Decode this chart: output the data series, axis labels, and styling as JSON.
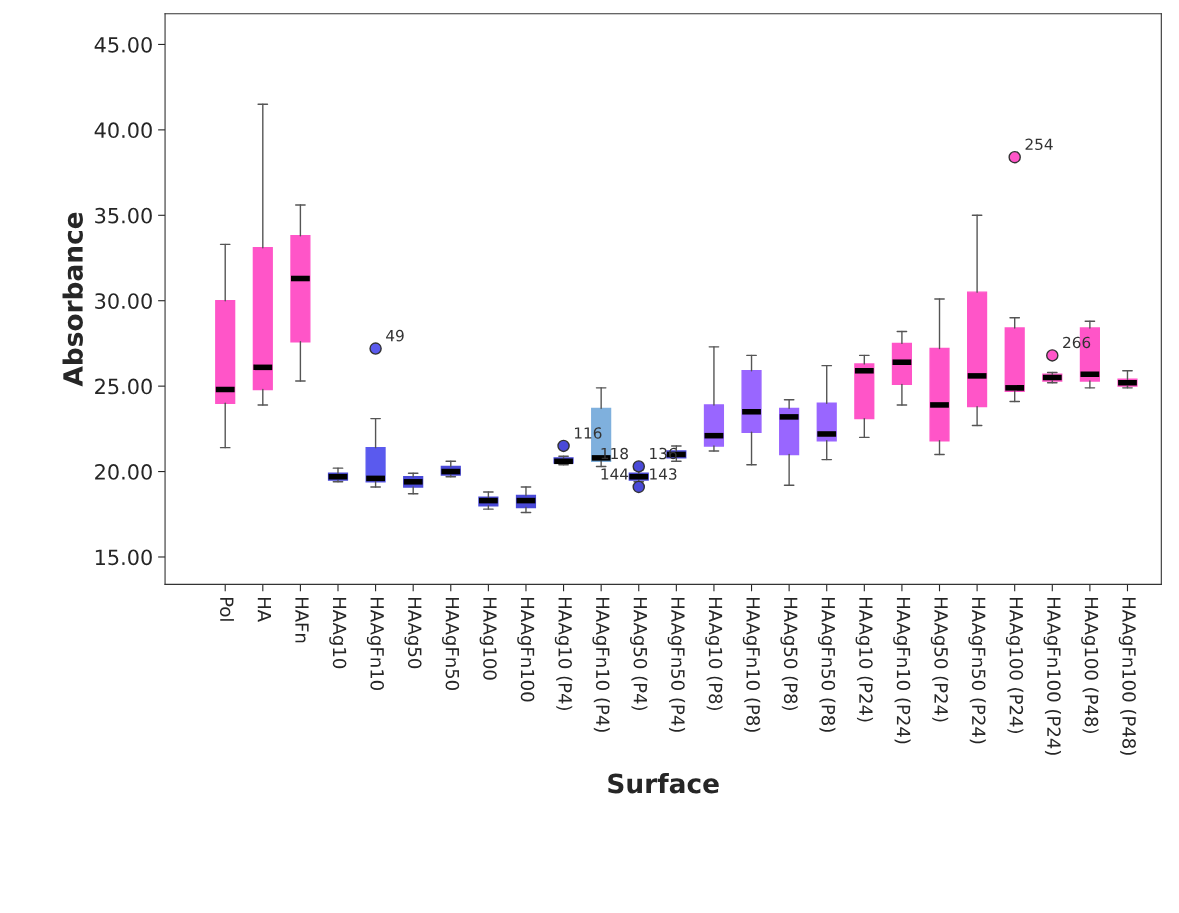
{
  "chart_data": {
    "type": "box",
    "xlabel": "Surface",
    "ylabel": "Absorbance",
    "categories": [
      "Pol",
      "HA",
      "HAFn",
      "HAAg10",
      "HAAgFn10",
      "HAAg50",
      "HAAgFn50",
      "HAAg100",
      "HAAgFn100",
      "HAAg10 (P4)",
      "HAAgFn10 (P4)",
      "HAAg50 (P4)",
      "HAAgFn50 (P4)",
      "HAAg10 (P8)",
      "HAAgFn10 (P8)",
      "HAAg50 (P8)",
      "HAAgFn50 (P8)",
      "HAAg10 (P24)",
      "HAAgFn10 (P24)",
      "HAAg50 (P24)",
      "HAAgFn50 (P24)",
      "HAAg100 (P24)",
      "HAAgFn100 (P24)",
      "HAAg100 (P48)",
      "HAAgFn100 (P48)"
    ],
    "boxes": [
      {
        "low": 21.4,
        "q1": 24.0,
        "median": 24.8,
        "q3": 30.0,
        "high": 33.3
      },
      {
        "low": 23.9,
        "q1": 24.8,
        "median": 26.1,
        "q3": 33.1,
        "high": 41.5
      },
      {
        "low": 25.3,
        "q1": 27.6,
        "median": 31.3,
        "q3": 33.8,
        "high": 35.6
      },
      {
        "low": 19.4,
        "q1": 19.5,
        "median": 19.7,
        "q3": 19.9,
        "high": 20.2
      },
      {
        "low": 19.1,
        "q1": 19.4,
        "median": 19.6,
        "q3": 21.4,
        "high": 23.1,
        "outliers": [
          27.2
        ]
      },
      {
        "low": 18.7,
        "q1": 19.1,
        "median": 19.4,
        "q3": 19.7,
        "high": 19.9
      },
      {
        "low": 19.7,
        "q1": 19.8,
        "median": 20.0,
        "q3": 20.3,
        "high": 20.6
      },
      {
        "low": 17.8,
        "q1": 18.0,
        "median": 18.3,
        "q3": 18.5,
        "high": 18.8
      },
      {
        "low": 17.6,
        "q1": 17.9,
        "median": 18.3,
        "q3": 18.6,
        "high": 19.1
      },
      {
        "low": 20.4,
        "q1": 20.5,
        "median": 20.6,
        "q3": 20.8,
        "high": 20.9,
        "outliers": [
          21.5
        ]
      },
      {
        "low": 20.3,
        "q1": 20.6,
        "median": 20.8,
        "q3": 23.7,
        "high": 24.9
      },
      {
        "low": 19.4,
        "q1": 19.5,
        "median": 19.7,
        "q3": 19.9,
        "high": 20.1,
        "outliers": [
          20.3,
          19.1
        ]
      },
      {
        "low": 20.6,
        "q1": 20.8,
        "median": 21.0,
        "q3": 21.2,
        "high": 21.5
      },
      {
        "low": 21.2,
        "q1": 21.5,
        "median": 22.1,
        "q3": 23.9,
        "high": 27.3
      },
      {
        "low": 20.4,
        "q1": 22.3,
        "median": 23.5,
        "q3": 25.9,
        "high": 26.8
      },
      {
        "low": 19.2,
        "q1": 21.0,
        "median": 23.2,
        "q3": 23.7,
        "high": 24.2
      },
      {
        "low": 20.7,
        "q1": 21.8,
        "median": 22.2,
        "q3": 24.0,
        "high": 26.2
      },
      {
        "low": 22.0,
        "q1": 23.1,
        "median": 25.9,
        "q3": 26.3,
        "high": 26.8
      },
      {
        "low": 23.9,
        "q1": 25.1,
        "median": 26.4,
        "q3": 27.5,
        "high": 28.2
      },
      {
        "low": 21.0,
        "q1": 21.8,
        "median": 23.9,
        "q3": 27.2,
        "high": 30.1
      },
      {
        "low": 22.7,
        "q1": 23.8,
        "median": 25.6,
        "q3": 30.5,
        "high": 35.0
      },
      {
        "low": 24.1,
        "q1": 24.7,
        "median": 24.9,
        "q3": 28.4,
        "high": 29.0,
        "outliers": [
          38.4
        ]
      },
      {
        "low": 25.2,
        "q1": 25.3,
        "median": 25.5,
        "q3": 25.7,
        "high": 25.8,
        "outliers": [
          26.8
        ]
      },
      {
        "low": 24.9,
        "q1": 25.3,
        "median": 25.7,
        "q3": 28.4,
        "high": 28.8
      },
      {
        "low": 24.9,
        "q1": 25.0,
        "median": 25.2,
        "q3": 25.4,
        "high": 25.9
      }
    ],
    "colors": [
      "#ff55c8",
      "#ff55c8",
      "#ff55c8",
      "#4a4ad8",
      "#5a5aee",
      "#4a4ad8",
      "#4a4ad8",
      "#4a4ad8",
      "#4a4ad8",
      "#4a4ad8",
      "#7fb0dd",
      "#4a4ad8",
      "#4a4ad8",
      "#9966ff",
      "#9966ff",
      "#9966ff",
      "#9966ff",
      "#ff55c8",
      "#ff55c8",
      "#ff55c8",
      "#ff55c8",
      "#ff55c8",
      "#ff55c8",
      "#ff55c8",
      "#ff55c8"
    ],
    "ylim": [
      13.4,
      46.8
    ],
    "yticks": [
      {
        "value": 15,
        "label": "15.00"
      },
      {
        "value": 20,
        "label": "20.00"
      },
      {
        "value": 25,
        "label": "25.00"
      },
      {
        "value": 30,
        "label": "30.00"
      },
      {
        "value": 35,
        "label": "35.00"
      },
      {
        "value": 40,
        "label": "40.00"
      },
      {
        "value": 45,
        "label": "45.00"
      }
    ],
    "grid": false,
    "annotations": [
      "49",
      "116",
      "136",
      "143",
      "254",
      "266",
      "118",
      "144"
    ]
  }
}
